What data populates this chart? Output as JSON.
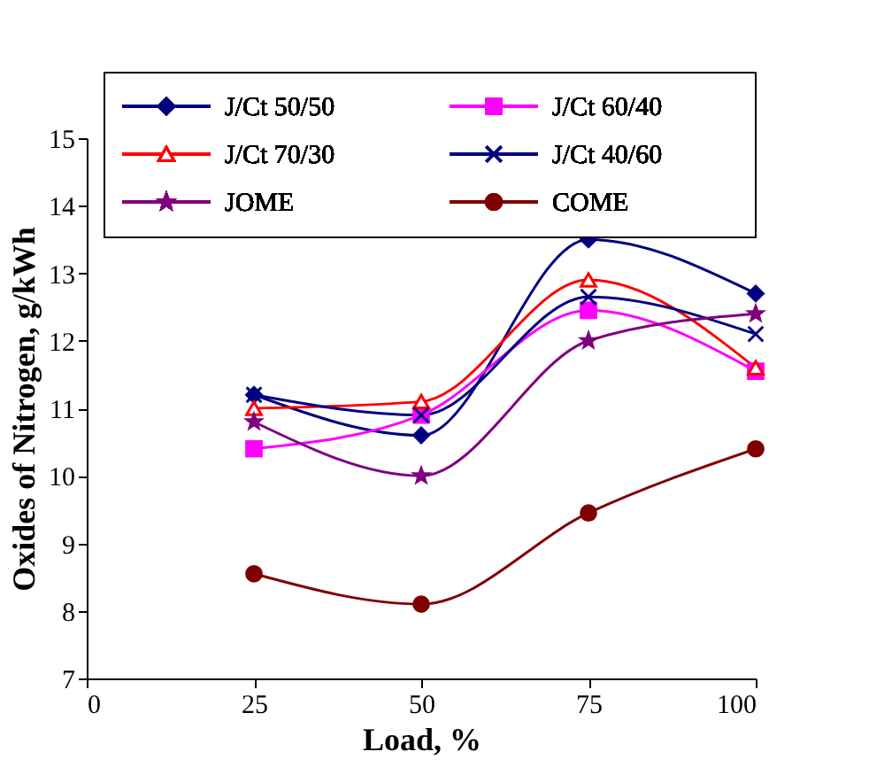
{
  "chart_data": {
    "type": "line",
    "xlabel": "Load, %",
    "ylabel": "Oxides of Nitrogen, g/kWh",
    "xlim": [
      0,
      100
    ],
    "xticks": [
      0,
      25,
      50,
      75,
      100
    ],
    "ylim": [
      7,
      15
    ],
    "yticks": [
      7,
      8,
      9,
      10,
      11,
      12,
      13,
      14,
      15
    ],
    "grid": false,
    "legend": "top right",
    "series": [
      {
        "name": "J/Ct 50/50",
        "color": "#000080",
        "marker": "diamond",
        "x": [
          25,
          50,
          75,
          100
        ],
        "values": [
          11.2,
          10.6,
          13.5,
          12.7
        ]
      },
      {
        "name": "J/Ct 60/40",
        "color": "#ff00ff",
        "marker": "square",
        "x": [
          25,
          50,
          75,
          100
        ],
        "values": [
          10.4,
          10.9,
          12.45,
          11.55
        ]
      },
      {
        "name": "J/Ct 70/30",
        "color": "#ff0000",
        "marker": "triangle",
        "x": [
          25,
          50,
          75,
          100
        ],
        "values": [
          11.0,
          11.1,
          12.9,
          11.6
        ]
      },
      {
        "name": "J/Ct 40/60",
        "color": "#000080",
        "marker": "cross",
        "x": [
          25,
          50,
          75,
          100
        ],
        "values": [
          11.2,
          10.9,
          12.65,
          12.1
        ]
      },
      {
        "name": "JOME",
        "color": "#800080",
        "marker": "star",
        "x": [
          25,
          50,
          75,
          100
        ],
        "values": [
          10.8,
          10.0,
          12.0,
          12.4
        ]
      },
      {
        "name": "COME",
        "color": "#800000",
        "marker": "circle",
        "x": [
          25,
          50,
          75,
          100
        ],
        "values": [
          8.55,
          8.1,
          9.45,
          10.4
        ]
      }
    ]
  }
}
